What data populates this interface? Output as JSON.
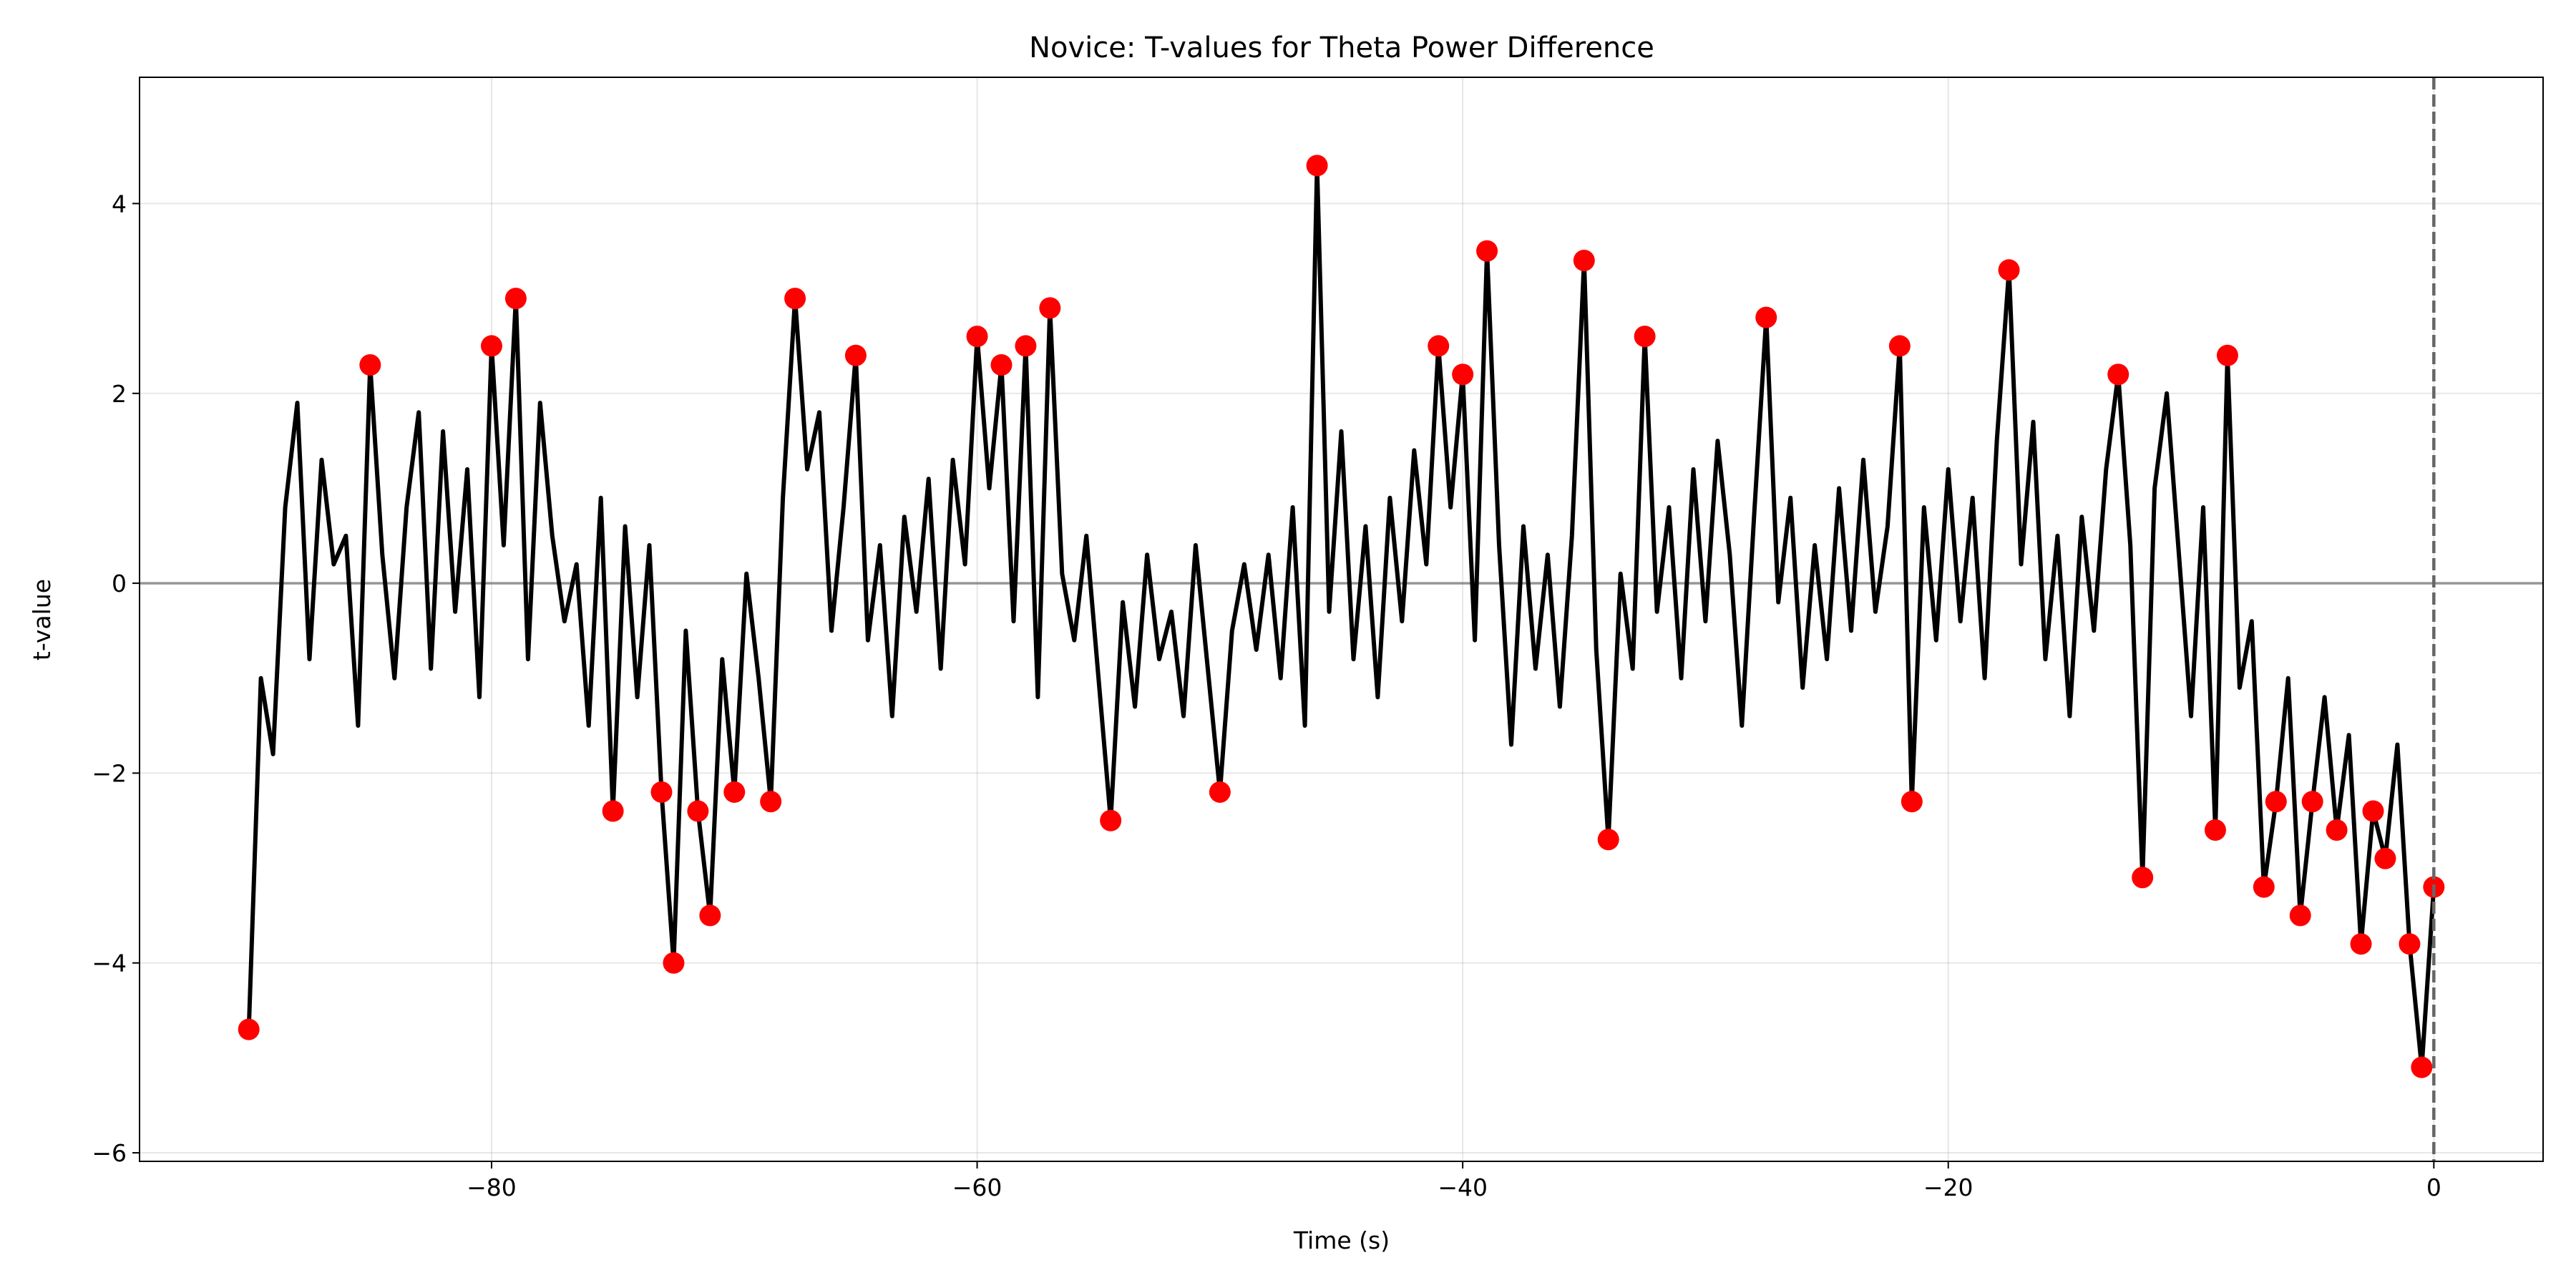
{
  "chart_data": {
    "type": "line",
    "title": "Novice: T-values for Theta Power Difference",
    "x_label": "Time (s)",
    "y_label": "t-value",
    "xlim": [
      -94.5,
      4.5
    ],
    "ylim": [
      -6.09,
      5.33
    ],
    "xticks": [
      {
        "value": -80,
        "label": "−80"
      },
      {
        "value": -60,
        "label": "−60"
      },
      {
        "value": -40,
        "label": "−40"
      },
      {
        "value": -20,
        "label": "−20"
      },
      0
    ],
    "yticks": [
      {
        "value": -6,
        "label": "−6"
      },
      {
        "value": -4,
        "label": "−4"
      },
      {
        "value": -2,
        "label": "−2"
      },
      0,
      2,
      4
    ],
    "grid": true,
    "hline": 0,
    "vline": 0,
    "series": [
      {
        "type": "line",
        "color": "#000000",
        "x": [
          -90,
          -89.5,
          -89,
          -88.5,
          -88,
          -87.5,
          -87,
          -86.5,
          -86,
          -85.5,
          -85,
          -84.5,
          -84,
          -83.5,
          -83,
          -82.5,
          -82,
          -81.5,
          -81,
          -80.5,
          -80,
          -79.5,
          -79,
          -78.5,
          -78,
          -77.5,
          -77,
          -76.5,
          -76,
          -75.5,
          -75,
          -74.5,
          -74,
          -73.5,
          -73,
          -72.5,
          -72,
          -71.5,
          -71,
          -70.5,
          -70,
          -69.5,
          -69,
          -68.5,
          -68,
          -67.5,
          -67,
          -66.5,
          -66,
          -65.5,
          -65,
          -64.5,
          -64,
          -63.5,
          -63,
          -62.5,
          -62,
          -61.5,
          -61,
          -60.5,
          -60,
          -59.5,
          -59,
          -58.5,
          -58,
          -57.5,
          -57,
          -56.5,
          -56,
          -55.5,
          -55,
          -54.5,
          -54,
          -53.5,
          -53,
          -52.5,
          -52,
          -51.5,
          -51,
          -50.5,
          -50,
          -49.5,
          -49,
          -48.5,
          -48,
          -47.5,
          -47,
          -46.5,
          -46,
          -45.5,
          -45,
          -44.5,
          -44,
          -43.5,
          -43,
          -42.5,
          -42,
          -41.5,
          -41,
          -40.5,
          -40,
          -39.5,
          -39,
          -38.5,
          -38,
          -37.5,
          -37,
          -36.5,
          -36,
          -35.5,
          -35,
          -34.5,
          -34,
          -33.5,
          -33,
          -32.5,
          -32,
          -31.5,
          -31,
          -30.5,
          -30,
          -29.5,
          -29,
          -28.5,
          -28,
          -27.5,
          -27,
          -26.5,
          -26,
          -25.5,
          -25,
          -24.5,
          -24,
          -23.5,
          -23,
          -22.5,
          -22,
          -21.5,
          -21,
          -20.5,
          -20,
          -19.5,
          -19,
          -18.5,
          -18,
          -17.5,
          -17,
          -16.5,
          -16,
          -15.5,
          -15,
          -14.5,
          -14,
          -13.5,
          -13,
          -12.5,
          -12,
          -11.5,
          -11,
          -10.5,
          -10,
          -9.5,
          -9,
          -8.5,
          -8,
          -7.5,
          -7,
          -6.5,
          -6,
          -5.5,
          -5,
          -4.5,
          -4,
          -3.5,
          -3,
          -2.5,
          -2,
          -1.5,
          -1,
          -0.5,
          0
        ],
        "values": [
          -4.7,
          -1.0,
          -1.8,
          0.8,
          1.9,
          -0.8,
          1.3,
          0.2,
          0.5,
          -1.5,
          2.3,
          0.3,
          -1.0,
          0.8,
          1.8,
          -0.9,
          1.6,
          -0.3,
          1.2,
          -1.2,
          2.5,
          0.4,
          3.0,
          -0.8,
          1.9,
          0.5,
          -0.4,
          0.2,
          -1.5,
          0.9,
          -2.4,
          0.6,
          -1.2,
          0.4,
          -2.2,
          -4.0,
          -0.5,
          -2.4,
          -3.5,
          -0.8,
          -2.2,
          0.1,
          -1.0,
          -2.3,
          0.9,
          3.0,
          1.2,
          1.8,
          -0.5,
          0.8,
          2.4,
          -0.6,
          0.4,
          -1.4,
          0.7,
          -0.3,
          1.1,
          -0.9,
          1.3,
          0.2,
          2.6,
          1.0,
          2.3,
          -0.4,
          2.5,
          -1.2,
          2.9,
          0.1,
          -0.6,
          0.5,
          -1.0,
          -2.5,
          -0.2,
          -1.3,
          0.3,
          -0.8,
          -0.3,
          -1.4,
          0.4,
          -0.9,
          -2.2,
          -0.5,
          0.2,
          -0.7,
          0.3,
          -1.0,
          0.8,
          -1.5,
          4.4,
          -0.3,
          1.6,
          -0.8,
          0.6,
          -1.2,
          0.9,
          -0.4,
          1.4,
          0.2,
          2.5,
          0.8,
          2.2,
          -0.6,
          3.5,
          0.4,
          -1.7,
          0.6,
          -0.9,
          0.3,
          -1.3,
          0.5,
          3.4,
          -0.7,
          -2.7,
          0.1,
          -0.9,
          2.6,
          -0.3,
          0.8,
          -1.0,
          1.2,
          -0.4,
          1.5,
          0.3,
          -1.5,
          0.7,
          2.8,
          -0.2,
          0.9,
          -1.1,
          0.4,
          -0.8,
          1.0,
          -0.5,
          1.3,
          -0.3,
          0.6,
          2.5,
          -2.3,
          0.8,
          -0.6,
          1.2,
          -0.4,
          0.9,
          -1.0,
          1.5,
          3.3,
          0.2,
          1.7,
          -0.8,
          0.5,
          -1.4,
          0.7,
          -0.5,
          1.2,
          2.2,
          0.4,
          -3.1,
          1.0,
          2.0,
          0.3,
          -1.4,
          0.8,
          -2.6,
          2.4,
          -1.1,
          -0.4,
          -3.2,
          -2.3,
          -1.0,
          -3.5,
          -2.3,
          -1.2,
          -2.6,
          -1.6,
          -3.8,
          -2.4,
          -2.9,
          -1.7,
          -3.8,
          -5.1,
          -3.2
        ]
      },
      {
        "type": "scatter",
        "color": "#ff0000",
        "x": [
          -90,
          -85,
          -80,
          -79,
          -75,
          -73,
          -72.5,
          -71.5,
          -71,
          -70,
          -68.5,
          -67.5,
          -65,
          -60,
          -59,
          -58,
          -57,
          -54.5,
          -50,
          -46,
          -41,
          -40,
          -39,
          -35,
          -34,
          -32.5,
          -27.5,
          -22,
          -21.5,
          -17.5,
          -13,
          -12,
          -9,
          -8.5,
          -7,
          -6.5,
          -5.5,
          -5,
          -4,
          -3,
          -2.5,
          -2,
          -1,
          -0.5,
          0
        ],
        "values": [
          -4.7,
          2.3,
          2.5,
          3.0,
          -2.4,
          -2.2,
          -4.0,
          -2.4,
          -3.5,
          -2.2,
          -2.3,
          3.0,
          2.4,
          2.6,
          2.3,
          2.5,
          2.9,
          -2.5,
          -2.2,
          4.4,
          2.5,
          2.2,
          3.5,
          3.4,
          -2.7,
          2.6,
          2.8,
          2.5,
          -2.3,
          3.3,
          2.2,
          -3.1,
          -2.6,
          2.4,
          -3.2,
          -2.3,
          -3.5,
          -2.3,
          -2.6,
          -3.8,
          -2.4,
          -2.9,
          -3.8,
          -5.1,
          -3.2
        ]
      }
    ]
  }
}
